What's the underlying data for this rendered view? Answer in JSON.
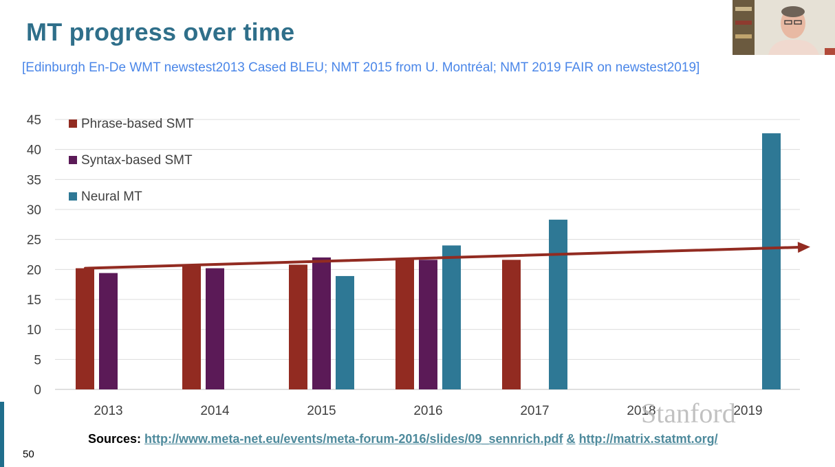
{
  "slide": {
    "title": "MT progress over time",
    "subtitle": "[Edinburgh En-De WMT newstest2013 Cased BLEU; NMT 2015 from U. Montréal; NMT 2019 FAIR on newstest2019]",
    "sources_label": "Sources:",
    "source_link_1": "http://www.meta-net.eu/events/meta-forum-2016/slides/09_sennrich.pdf",
    "source_join": "&",
    "source_link_2": "http://matrix.statmt.org/",
    "page_number": "50",
    "watermark": "Stanford"
  },
  "chart_data": {
    "type": "bar",
    "categories": [
      "2013",
      "2014",
      "2015",
      "2016",
      "2017",
      "2018",
      "2019"
    ],
    "series": [
      {
        "name": "Phrase-based SMT",
        "color": "#922b21",
        "values": [
          20.2,
          20.8,
          20.8,
          21.7,
          21.6,
          null,
          null
        ]
      },
      {
        "name": "Syntax-based SMT",
        "color": "#5b1a57",
        "values": [
          19.4,
          20.2,
          22.0,
          21.6,
          null,
          null,
          null
        ]
      },
      {
        "name": "Neural MT",
        "color": "#2e7895",
        "values": [
          null,
          null,
          18.9,
          24.0,
          28.3,
          null,
          42.7
        ]
      }
    ],
    "yticks": [
      0,
      5,
      10,
      15,
      20,
      25,
      30,
      35,
      40,
      45
    ],
    "ylim": [
      0,
      45
    ],
    "grid": true,
    "legend_position": "top-left",
    "trend_arrow": {
      "color": "#922b21",
      "start": 20.2,
      "end": 23.7
    }
  }
}
